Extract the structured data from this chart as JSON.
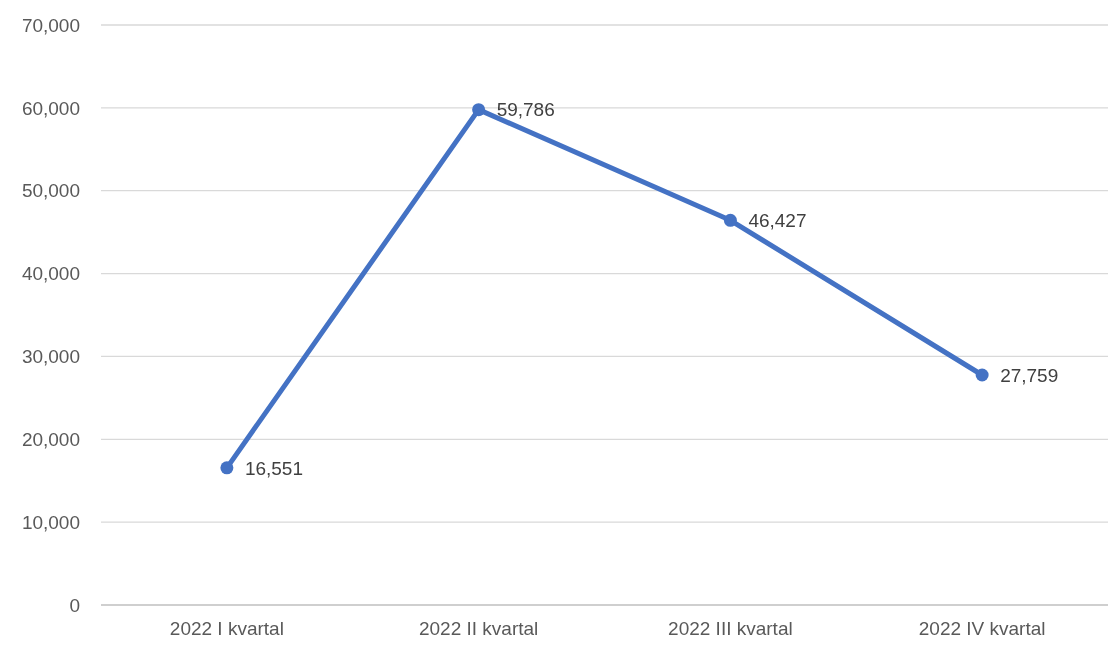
{
  "chart_data": {
    "type": "line",
    "categories": [
      "2022 I kvartal",
      "2022 II kvartal",
      "2022 III kvartal",
      "2022 IV kvartal"
    ],
    "series": [
      {
        "color": "#4472c4",
        "values": [
          16551,
          59786,
          46427,
          27759
        ],
        "value_labels": [
          "16,551",
          "59,786",
          "46,427",
          "27,759"
        ]
      }
    ],
    "ylim": [
      0,
      70000
    ],
    "yticks": [
      {
        "value": 0,
        "label": "0"
      },
      {
        "value": 10000,
        "label": "10,000"
      },
      {
        "value": 20000,
        "label": "20,000"
      },
      {
        "value": 30000,
        "label": "30,000"
      },
      {
        "value": 40000,
        "label": "40,000"
      },
      {
        "value": 50000,
        "label": "50,000"
      },
      {
        "value": 60000,
        "label": "60,000"
      },
      {
        "value": 70000,
        "label": "70,000"
      }
    ],
    "grid": "y",
    "marker": "circle",
    "line_style": "solid"
  }
}
